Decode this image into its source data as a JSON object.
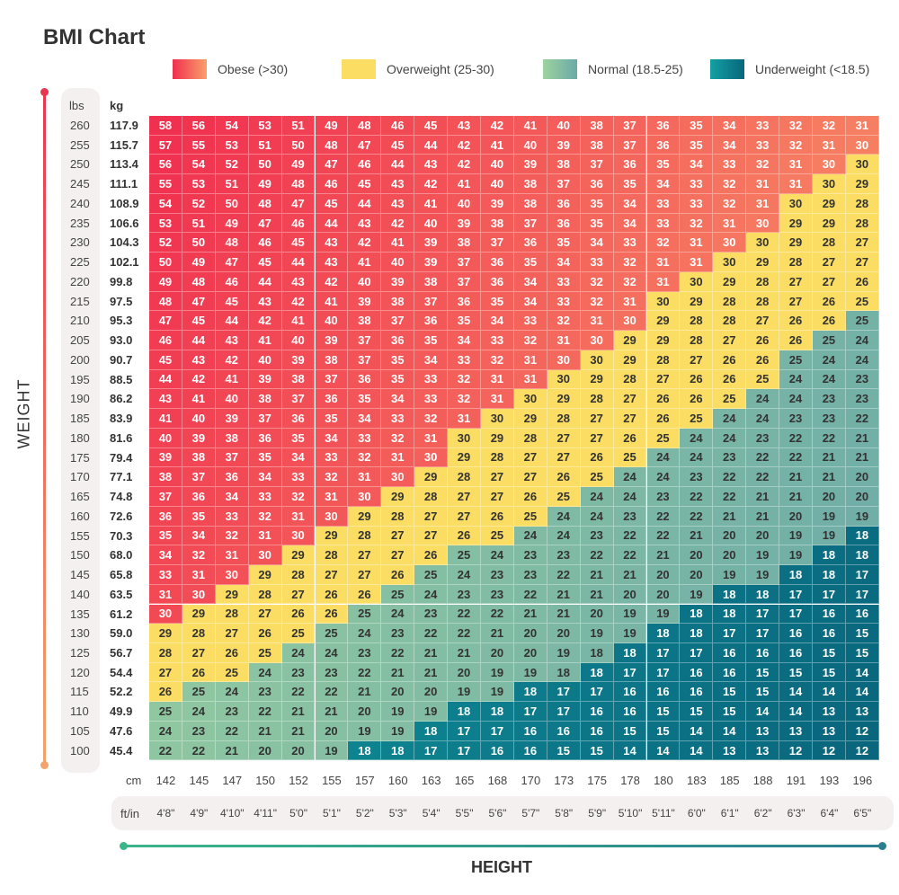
{
  "chart_data": {
    "type": "heatmap",
    "title": "BMI Chart",
    "xlabel": "HEIGHT",
    "ylabel": "WEIGHT",
    "weight_units": [
      "lbs",
      "kg"
    ],
    "height_units": [
      "cm",
      "ft/in"
    ],
    "legend": [
      {
        "key": "O",
        "label": "Obese (>30)",
        "colors": [
          "#f0304f",
          "#f9a06a"
        ],
        "text_color": "#ffffff"
      },
      {
        "key": "W",
        "label": "Overweight (25-30)",
        "colors": [
          "#fbdd63",
          "#fbdd63"
        ],
        "text_color": "#333333"
      },
      {
        "key": "N",
        "label": "Normal (18.5-25)",
        "colors": [
          "#9ed39e",
          "#6aa9a8"
        ],
        "text_color": "#333333"
      },
      {
        "key": "U",
        "label": "Underweight (<18.5)",
        "colors": [
          "#13a0a3",
          "#09667d"
        ],
        "text_color": "#ffffff"
      }
    ],
    "lbs": [
      260,
      255,
      250,
      245,
      240,
      235,
      230,
      225,
      220,
      215,
      210,
      205,
      200,
      195,
      190,
      185,
      180,
      175,
      170,
      165,
      160,
      155,
      150,
      145,
      140,
      135,
      130,
      125,
      120,
      115,
      110,
      105,
      100
    ],
    "kg": [
      "117.9",
      "115.7",
      "113.4",
      "111.1",
      "108.9",
      "106.6",
      "104.3",
      "102.1",
      "99.8",
      "97.5",
      "95.3",
      "93.0",
      "90.7",
      "88.5",
      "86.2",
      "83.9",
      "81.6",
      "79.4",
      "77.1",
      "74.8",
      "72.6",
      "70.3",
      "68.0",
      "65.8",
      "63.5",
      "61.2",
      "59.0",
      "56.7",
      "54.4",
      "52.2",
      "49.9",
      "47.6",
      "45.4"
    ],
    "cm": [
      142,
      145,
      147,
      150,
      152,
      155,
      157,
      160,
      163,
      165,
      168,
      170,
      173,
      175,
      178,
      180,
      183,
      185,
      188,
      191,
      193,
      196
    ],
    "ftin": [
      "4'8\"",
      "4'9\"",
      "4'10\"",
      "4'11\"",
      "5'0\"",
      "5'1\"",
      "5'2\"",
      "5'3\"",
      "5'4\"",
      "5'5\"",
      "5'6\"",
      "5'7\"",
      "5'8\"",
      "5'9\"",
      "5'10\"",
      "5'11\"",
      "6'0\"",
      "6'1\"",
      "6'2\"",
      "6'3\"",
      "6'4\"",
      "6'5\""
    ],
    "values": [
      [
        58,
        56,
        54,
        53,
        51,
        49,
        48,
        46,
        45,
        43,
        42,
        41,
        40,
        38,
        37,
        36,
        35,
        34,
        33,
        32,
        32,
        31
      ],
      [
        57,
        55,
        53,
        51,
        50,
        48,
        47,
        45,
        44,
        42,
        41,
        40,
        39,
        38,
        37,
        36,
        35,
        34,
        33,
        32,
        31,
        30
      ],
      [
        56,
        54,
        52,
        50,
        49,
        47,
        46,
        44,
        43,
        42,
        40,
        39,
        38,
        37,
        36,
        35,
        34,
        33,
        32,
        31,
        30,
        30
      ],
      [
        55,
        53,
        51,
        49,
        48,
        46,
        45,
        43,
        42,
        41,
        40,
        38,
        37,
        36,
        35,
        34,
        33,
        32,
        31,
        31,
        30,
        29
      ],
      [
        54,
        52,
        50,
        48,
        47,
        45,
        44,
        43,
        41,
        40,
        39,
        38,
        36,
        35,
        34,
        33,
        33,
        32,
        31,
        30,
        29,
        28
      ],
      [
        53,
        51,
        49,
        47,
        46,
        44,
        43,
        42,
        40,
        39,
        38,
        37,
        36,
        35,
        34,
        33,
        32,
        31,
        30,
        29,
        29,
        28
      ],
      [
        52,
        50,
        48,
        46,
        45,
        43,
        42,
        41,
        39,
        38,
        37,
        36,
        35,
        34,
        33,
        32,
        31,
        30,
        30,
        29,
        28,
        27
      ],
      [
        50,
        49,
        47,
        45,
        44,
        43,
        41,
        40,
        39,
        37,
        36,
        35,
        34,
        33,
        32,
        31,
        31,
        30,
        29,
        28,
        27,
        27
      ],
      [
        49,
        48,
        46,
        44,
        43,
        42,
        40,
        39,
        38,
        37,
        36,
        34,
        33,
        32,
        32,
        31,
        30,
        29,
        28,
        27,
        27,
        26
      ],
      [
        48,
        47,
        45,
        43,
        42,
        41,
        39,
        38,
        37,
        36,
        35,
        34,
        33,
        32,
        31,
        30,
        29,
        28,
        28,
        27,
        26,
        25
      ],
      [
        47,
        45,
        44,
        42,
        41,
        40,
        38,
        37,
        36,
        35,
        34,
        33,
        32,
        31,
        30,
        29,
        28,
        28,
        27,
        26,
        26,
        25
      ],
      [
        46,
        44,
        43,
        41,
        40,
        39,
        37,
        36,
        35,
        34,
        33,
        32,
        31,
        30,
        29,
        29,
        28,
        27,
        26,
        26,
        25,
        24
      ],
      [
        45,
        43,
        42,
        40,
        39,
        38,
        37,
        35,
        34,
        33,
        32,
        31,
        30,
        30,
        29,
        28,
        27,
        26,
        26,
        25,
        24,
        24
      ],
      [
        44,
        42,
        41,
        39,
        38,
        37,
        36,
        35,
        33,
        32,
        31,
        31,
        30,
        29,
        28,
        27,
        26,
        26,
        25,
        24,
        24,
        23
      ],
      [
        43,
        41,
        40,
        38,
        37,
        36,
        35,
        34,
        33,
        32,
        31,
        30,
        29,
        28,
        27,
        26,
        26,
        25,
        24,
        24,
        23,
        23
      ],
      [
        41,
        40,
        39,
        37,
        36,
        35,
        34,
        33,
        32,
        31,
        30,
        29,
        28,
        27,
        27,
        26,
        25,
        24,
        24,
        23,
        23,
        22
      ],
      [
        40,
        39,
        38,
        36,
        35,
        34,
        33,
        32,
        31,
        30,
        29,
        28,
        27,
        27,
        26,
        25,
        24,
        24,
        23,
        22,
        22,
        21
      ],
      [
        39,
        38,
        37,
        35,
        34,
        33,
        32,
        31,
        30,
        29,
        28,
        27,
        27,
        26,
        25,
        24,
        24,
        23,
        22,
        22,
        21,
        21
      ],
      [
        38,
        37,
        36,
        34,
        33,
        32,
        31,
        30,
        29,
        28,
        27,
        27,
        26,
        25,
        24,
        24,
        23,
        22,
        22,
        21,
        21,
        20
      ],
      [
        37,
        36,
        34,
        33,
        32,
        31,
        30,
        29,
        28,
        27,
        27,
        26,
        25,
        24,
        24,
        23,
        22,
        22,
        21,
        21,
        20,
        20
      ],
      [
        36,
        35,
        33,
        32,
        31,
        30,
        29,
        28,
        27,
        27,
        26,
        25,
        24,
        24,
        23,
        22,
        22,
        21,
        21,
        20,
        19,
        19
      ],
      [
        35,
        34,
        32,
        31,
        30,
        29,
        28,
        27,
        27,
        26,
        25,
        24,
        24,
        23,
        22,
        22,
        21,
        20,
        20,
        19,
        19,
        18
      ],
      [
        34,
        32,
        31,
        30,
        29,
        28,
        27,
        27,
        26,
        25,
        24,
        23,
        23,
        22,
        22,
        21,
        20,
        20,
        19,
        19,
        18,
        18
      ],
      [
        33,
        31,
        30,
        29,
        28,
        27,
        27,
        26,
        25,
        24,
        23,
        23,
        22,
        21,
        21,
        20,
        20,
        19,
        19,
        18,
        18,
        17
      ],
      [
        31,
        30,
        29,
        28,
        27,
        26,
        26,
        25,
        24,
        23,
        23,
        22,
        21,
        21,
        20,
        20,
        19,
        18,
        18,
        17,
        17,
        17
      ],
      [
        30,
        29,
        28,
        27,
        26,
        26,
        25,
        24,
        23,
        22,
        22,
        21,
        21,
        20,
        19,
        19,
        18,
        18,
        17,
        17,
        16,
        16
      ],
      [
        29,
        28,
        27,
        26,
        25,
        25,
        24,
        23,
        22,
        22,
        21,
        20,
        20,
        19,
        19,
        18,
        18,
        17,
        17,
        16,
        16,
        15
      ],
      [
        28,
        27,
        26,
        25,
        24,
        24,
        23,
        22,
        21,
        21,
        20,
        20,
        19,
        18,
        18,
        17,
        17,
        16,
        16,
        16,
        15,
        15
      ],
      [
        27,
        26,
        25,
        24,
        23,
        23,
        22,
        21,
        21,
        20,
        19,
        19,
        18,
        18,
        17,
        17,
        16,
        16,
        15,
        15,
        15,
        14
      ],
      [
        26,
        25,
        24,
        23,
        22,
        22,
        21,
        20,
        20,
        19,
        19,
        18,
        17,
        17,
        16,
        16,
        16,
        15,
        15,
        14,
        14,
        14
      ],
      [
        25,
        24,
        23,
        22,
        21,
        21,
        20,
        19,
        19,
        18,
        18,
        17,
        17,
        16,
        16,
        15,
        15,
        15,
        14,
        14,
        13,
        13
      ],
      [
        24,
        23,
        22,
        21,
        21,
        20,
        19,
        19,
        18,
        17,
        17,
        16,
        16,
        16,
        15,
        15,
        14,
        14,
        13,
        13,
        13,
        12
      ],
      [
        22,
        22,
        21,
        20,
        20,
        19,
        18,
        18,
        17,
        17,
        16,
        16,
        15,
        15,
        14,
        14,
        14,
        13,
        13,
        12,
        12,
        12
      ]
    ],
    "categories": [
      "OOOOOOOOOOOOOOOOOOOOOO",
      "OOOOOOOOOOOOOOOOOOOOOO",
      "OOOOOOOOOOOOOOOOOOOOOW",
      "OOOOOOOOOOOOOOOOOOOOWW",
      "OOOOOOOOOOOOOOOOOOOWWW",
      "OOOOOOOOOOOOOOOOOOOWWW",
      "OOOOOOOOOOOOOOOOOOWWWW",
      "OOOOOOOOOOOOOOOOOWWWWW",
      "OOOOOOOOOOOOOOOOWWWWWW",
      "OOOOOOOOOOOOOOOWWWWWWW",
      "OOOOOOOOOOOOOOOWWWWWWN",
      "OOOOOOOOOOOOOOWWWWWWNN",
      "OOOOOOOOOOOOOWWWWWWNNN",
      "OOOOOOOOOOOOWWWWWWWNNN",
      "OOOOOOOOOOOWWWWWWWNNNN",
      "OOOOOOOOOOWWWWWWWNNNNN",
      "OOOOOOOOOWWWWWWWNNNNNN",
      "OOOOOOOOOWWWWWWNNNNNNN",
      "OOOOOOOOWWWWWWNNNNNNNN",
      "OOOOOOOWWWWWWNNNNNNNNN",
      "OOOOOOWWWWWWNNNNNNNNNN",
      "OOOOOWWWWWWNNNNNNNNNNU",
      "OOOOWWWWWNNNNNNNNNNNUU",
      "OOOWWWWWNNNNNNNNNNNUUU",
      "OOWWWWWNNNNNNNNNNUUUUU",
      "OWWWWWNNNNNNNNNNUUUUUU",
      "WWWWWNNNNNNNNNNUUUUUUU",
      "WWWWNNNNNNNNNNUUUUUUUU",
      "WWWNNNNNNNNNNUUUUUUUUU",
      "WNNNNNNNNNNUUUUUUUUUUU",
      "NNNNNNNNNUUUUUUUUUUUUU",
      "NNNNNNNNUUUUUUUUUUUUUU",
      "NNNNNNUUUUUUUUUUUUUUUU"
    ]
  }
}
